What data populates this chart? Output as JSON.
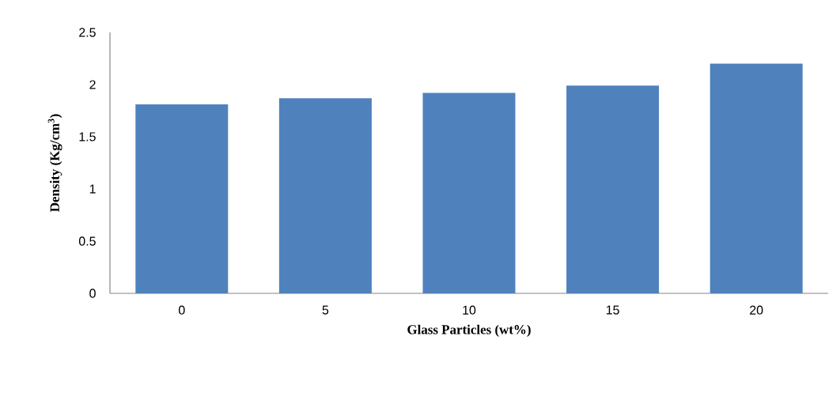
{
  "chart_data": {
    "type": "bar",
    "xlabel": "Glass Particles (wt%)",
    "ylabel": "Density (Kg/cm$^{3}$)",
    "categories": [
      "0",
      "5",
      "10",
      "15",
      "20"
    ],
    "values": [
      1.81,
      1.87,
      1.92,
      1.99,
      2.2
    ],
    "color": "#4f81bd",
    "ylim": [
      0,
      2.5
    ],
    "yticks": [
      0,
      0.5,
      1,
      1.5,
      2,
      2.5
    ]
  }
}
